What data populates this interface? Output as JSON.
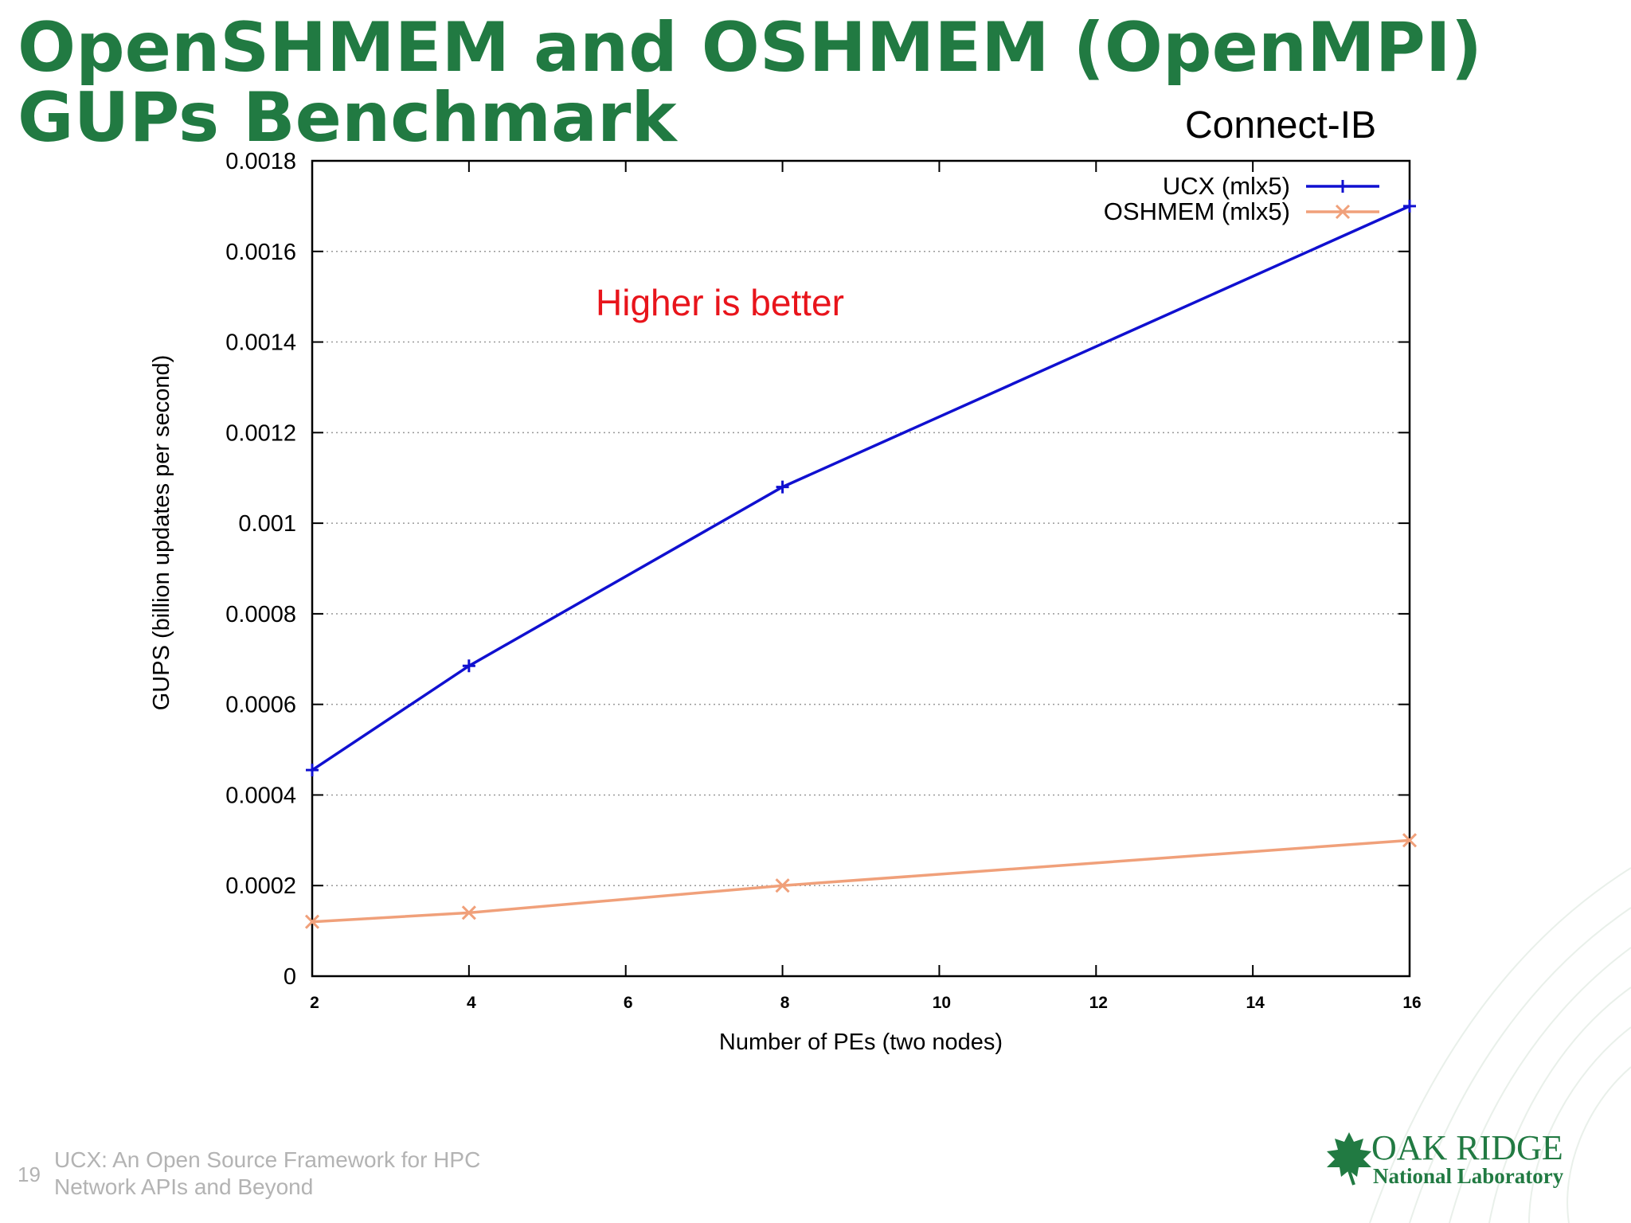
{
  "slide": {
    "title_line1": "OpenSHMEM and OSHMEM (OpenMPI)",
    "title_line2": "GUPs Benchmark",
    "subtitle": "Connect-IB",
    "page_number": "19",
    "footer_line1": "UCX: An Open Source Framework for HPC",
    "footer_line2": "Network APIs and Beyond",
    "logo_line1": "OAK RIDGE",
    "logo_line2": "National Laboratory",
    "title_color": "#217a42"
  },
  "chart_data": {
    "type": "line",
    "xlabel": "Number of PEs (two nodes)",
    "ylabel": "GUPS (billion updates per second)",
    "annotation": "Higher is better",
    "annotation_color": "#e8141b",
    "xlim": [
      2,
      16
    ],
    "ylim": [
      0,
      0.0018
    ],
    "xticks": [
      2,
      4,
      6,
      8,
      10,
      12,
      14,
      16
    ],
    "yticks": [
      0,
      0.0002,
      0.0004,
      0.0006,
      0.0008,
      0.001,
      0.0012,
      0.0014,
      0.0016,
      0.0018
    ],
    "ytick_labels": [
      "0",
      "0.0002",
      "0.0004",
      "0.0006",
      "0.0008",
      "0.001",
      "0.0012",
      "0.0014",
      "0.0016",
      "0.0018"
    ],
    "grid": "horizontal-dotted",
    "legend_position": "top-right",
    "series": [
      {
        "name": "UCX (mlx5)",
        "color": "#1010d0",
        "marker": "plus",
        "x": [
          2,
          4,
          8,
          16
        ],
        "y": [
          0.000455,
          0.000685,
          0.00108,
          0.0017
        ]
      },
      {
        "name": "OSHMEM (mlx5)",
        "color": "#f0a07a",
        "marker": "cross",
        "x": [
          2,
          4,
          8,
          16
        ],
        "y": [
          0.00012,
          0.00014,
          0.0002,
          0.0003
        ]
      }
    ]
  }
}
